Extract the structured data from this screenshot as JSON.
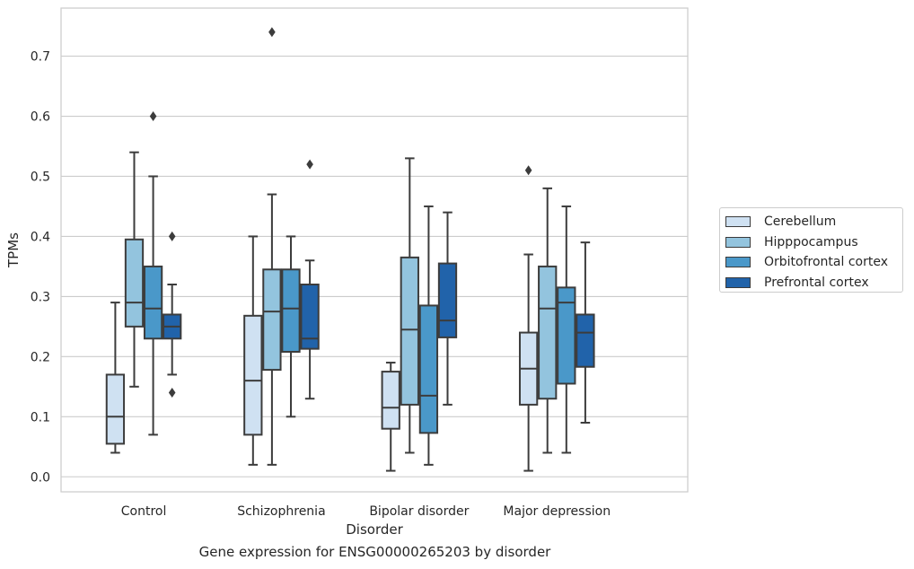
{
  "chart_data": {
    "type": "box",
    "title": "Gene expression for ENSG00000265203 by disorder",
    "xlabel": "Disorder",
    "ylabel": "TPMs",
    "ylim": [
      -0.025,
      0.78
    ],
    "yticks": [
      "0.0",
      "0.1",
      "0.2",
      "0.3",
      "0.4",
      "0.5",
      "0.6",
      "0.7"
    ],
    "grid": true,
    "legend_position": "right",
    "categories": [
      "Control",
      "Schizophrenia",
      "Bipolar disorder",
      "Major depression"
    ],
    "series": [
      {
        "name": "Cerebellum",
        "color": "#cfe1f2",
        "boxes": [
          {
            "whislo": 0.04,
            "q1": 0.055,
            "med": 0.1,
            "q3": 0.17,
            "whishi": 0.29,
            "fliers": []
          },
          {
            "whislo": 0.02,
            "q1": 0.07,
            "med": 0.16,
            "q3": 0.268,
            "whishi": 0.4,
            "fliers": []
          },
          {
            "whislo": 0.01,
            "q1": 0.08,
            "med": 0.115,
            "q3": 0.175,
            "whishi": 0.19,
            "fliers": []
          },
          {
            "whislo": 0.01,
            "q1": 0.12,
            "med": 0.18,
            "q3": 0.24,
            "whishi": 0.37,
            "fliers": [
              0.51
            ]
          }
        ]
      },
      {
        "name": "Hipppocampus",
        "color": "#93c4de",
        "boxes": [
          {
            "whislo": 0.15,
            "q1": 0.25,
            "med": 0.29,
            "q3": 0.395,
            "whishi": 0.54,
            "fliers": []
          },
          {
            "whislo": 0.02,
            "q1": 0.178,
            "med": 0.275,
            "q3": 0.345,
            "whishi": 0.47,
            "fliers": [
              0.74
            ]
          },
          {
            "whislo": 0.04,
            "q1": 0.12,
            "med": 0.245,
            "q3": 0.365,
            "whishi": 0.53,
            "fliers": []
          },
          {
            "whislo": 0.04,
            "q1": 0.13,
            "med": 0.28,
            "q3": 0.35,
            "whishi": 0.48,
            "fliers": []
          }
        ]
      },
      {
        "name": "Orbitofrontal cortex",
        "color": "#4a98c9",
        "boxes": [
          {
            "whislo": 0.07,
            "q1": 0.23,
            "med": 0.28,
            "q3": 0.35,
            "whishi": 0.5,
            "fliers": [
              0.6
            ]
          },
          {
            "whislo": 0.1,
            "q1": 0.208,
            "med": 0.28,
            "q3": 0.345,
            "whishi": 0.4,
            "fliers": []
          },
          {
            "whislo": 0.02,
            "q1": 0.073,
            "med": 0.135,
            "q3": 0.285,
            "whishi": 0.45,
            "fliers": []
          },
          {
            "whislo": 0.04,
            "q1": 0.155,
            "med": 0.29,
            "q3": 0.315,
            "whishi": 0.45,
            "fliers": []
          }
        ]
      },
      {
        "name": "Prefrontal cortex",
        "color": "#2163aa",
        "boxes": [
          {
            "whislo": 0.17,
            "q1": 0.23,
            "med": 0.25,
            "q3": 0.27,
            "whishi": 0.32,
            "fliers": [
              0.14,
              0.4
            ]
          },
          {
            "whislo": 0.13,
            "q1": 0.213,
            "med": 0.23,
            "q3": 0.32,
            "whishi": 0.36,
            "fliers": [
              0.52
            ]
          },
          {
            "whislo": 0.12,
            "q1": 0.232,
            "med": 0.26,
            "q3": 0.355,
            "whishi": 0.44,
            "fliers": []
          },
          {
            "whislo": 0.09,
            "q1": 0.183,
            "med": 0.24,
            "q3": 0.27,
            "whishi": 0.39,
            "fliers": []
          }
        ]
      }
    ]
  }
}
